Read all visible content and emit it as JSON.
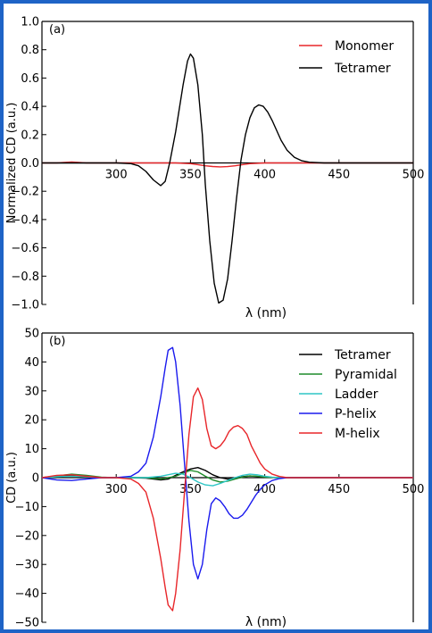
{
  "chart_data": [
    {
      "type": "line",
      "panel_label": "(a)",
      "ylabel": "Normalized CD (a.u.)",
      "xlabel": "λ (nm)",
      "xlim": [
        250,
        500
      ],
      "ylim": [
        -1.0,
        1.0
      ],
      "x_ticks": [
        300,
        350,
        400,
        450,
        500
      ],
      "y_ticks": [
        1.0,
        0.8,
        0.6,
        0.4,
        0.2,
        0.0,
        -0.2,
        -0.4,
        -0.6,
        -0.8,
        -1.0
      ],
      "x_tick_labels": [
        "300",
        "350",
        "400",
        "450",
        "500"
      ],
      "y_tick_labels": [
        "1.0",
        "0.8",
        "0.6",
        "0.4",
        "0.2",
        "0.0",
        "−0.2",
        "−0.4",
        "−0.6",
        "−0.8",
        "−1.0"
      ],
      "legend_position": "top-right",
      "grid": false,
      "series": [
        {
          "name": "Monomer",
          "color": "#e8262a",
          "x": [
            250,
            260,
            265,
            270,
            275,
            280,
            290,
            300,
            320,
            340,
            350,
            355,
            360,
            365,
            370,
            375,
            380,
            385,
            390,
            400,
            420,
            450,
            500
          ],
          "y": [
            0,
            0,
            0.004,
            0.006,
            0.004,
            0,
            0,
            0,
            0,
            0,
            -0.005,
            -0.012,
            -0.02,
            -0.025,
            -0.028,
            -0.026,
            -0.02,
            -0.012,
            -0.005,
            0,
            0,
            0,
            0
          ]
        },
        {
          "name": "Tetramer",
          "color": "#000000",
          "x": [
            250,
            300,
            310,
            315,
            320,
            325,
            330,
            333,
            336,
            340,
            345,
            348,
            350,
            352,
            355,
            358,
            360,
            363,
            366,
            369,
            372,
            375,
            378,
            381,
            384,
            387,
            390,
            393,
            396,
            399,
            402,
            405,
            408,
            411,
            415,
            420,
            425,
            430,
            440,
            450,
            500
          ],
          "y": [
            0,
            0,
            -0.005,
            -0.02,
            -0.06,
            -0.12,
            -0.16,
            -0.13,
            0.0,
            0.22,
            0.55,
            0.72,
            0.77,
            0.74,
            0.55,
            0.2,
            -0.15,
            -0.55,
            -0.85,
            -0.99,
            -0.97,
            -0.82,
            -0.55,
            -0.25,
            0.02,
            0.2,
            0.32,
            0.39,
            0.41,
            0.4,
            0.36,
            0.3,
            0.23,
            0.16,
            0.09,
            0.04,
            0.015,
            0.005,
            0,
            0,
            0
          ]
        }
      ]
    },
    {
      "type": "line",
      "panel_label": "(b)",
      "ylabel": "CD (a.u.)",
      "xlabel": "λ (nm)",
      "xlim": [
        250,
        500
      ],
      "ylim": [
        -50,
        50
      ],
      "x_ticks": [
        300,
        350,
        400,
        450,
        500
      ],
      "y_ticks": [
        50,
        40,
        30,
        20,
        10,
        0,
        -10,
        -20,
        -30,
        -40,
        -50
      ],
      "x_tick_labels": [
        "300",
        "350",
        "400",
        "450",
        "500"
      ],
      "y_tick_labels": [
        "50",
        "40",
        "30",
        "20",
        "10",
        "0",
        "−10",
        "−20",
        "−30",
        "−40",
        "−50"
      ],
      "legend_position": "top-right",
      "grid": false,
      "series": [
        {
          "name": "Tetramer",
          "color": "#000000",
          "x": [
            250,
            260,
            270,
            280,
            290,
            300,
            310,
            320,
            330,
            335,
            340,
            345,
            350,
            355,
            360,
            365,
            370,
            375,
            380,
            385,
            390,
            395,
            400,
            410,
            420,
            440,
            500
          ],
          "y": [
            0,
            0.5,
            0.8,
            0.4,
            0,
            0,
            0,
            -0.2,
            -0.8,
            -0.5,
            0.8,
            2.0,
            3.0,
            3.5,
            2.5,
            1.0,
            0,
            -0.5,
            -0.3,
            0.3,
            0.6,
            0.4,
            0.2,
            0,
            0,
            0,
            0
          ]
        },
        {
          "name": "Pyramidal",
          "color": "#1e8c2a",
          "x": [
            250,
            260,
            270,
            280,
            290,
            300,
            310,
            320,
            330,
            340,
            345,
            350,
            355,
            360,
            365,
            370,
            375,
            380,
            385,
            390,
            395,
            400,
            410,
            420,
            440,
            500
          ],
          "y": [
            0,
            0.6,
            1.2,
            0.8,
            0.2,
            0,
            0,
            0,
            -0.5,
            0.5,
            1.5,
            2.5,
            2.0,
            0.5,
            -0.8,
            -1.5,
            -1.2,
            -0.5,
            0.2,
            0.6,
            0.5,
            0.2,
            0,
            0,
            0,
            0
          ]
        },
        {
          "name": "Ladder",
          "color": "#2ec6c6",
          "x": [
            250,
            260,
            270,
            280,
            290,
            300,
            310,
            320,
            330,
            340,
            345,
            350,
            355,
            360,
            365,
            370,
            375,
            380,
            385,
            390,
            395,
            400,
            405,
            410,
            420,
            440,
            500
          ],
          "y": [
            0,
            0.3,
            0.5,
            0.3,
            0,
            0,
            0,
            0,
            0.5,
            1.5,
            1.2,
            0,
            -1.5,
            -2.5,
            -2.8,
            -2.0,
            -1.0,
            0,
            0.8,
            1.2,
            1.0,
            0.5,
            0.2,
            0,
            0,
            0,
            0
          ]
        },
        {
          "name": "P-helix",
          "color": "#1a1aee",
          "x": [
            250,
            260,
            270,
            280,
            290,
            300,
            310,
            315,
            320,
            325,
            330,
            333,
            335,
            338,
            340,
            343,
            346,
            349,
            352,
            355,
            358,
            361,
            364,
            367,
            370,
            373,
            376,
            379,
            382,
            385,
            388,
            391,
            394,
            397,
            400,
            405,
            410,
            415,
            420,
            430,
            440,
            500
          ],
          "y": [
            0,
            -0.8,
            -1.0,
            -0.5,
            0,
            0,
            0.5,
            2,
            5,
            14,
            28,
            38,
            44,
            45,
            40,
            25,
            5,
            -15,
            -30,
            -35,
            -30,
            -18,
            -9,
            -7,
            -8,
            -10,
            -12.5,
            -14,
            -14,
            -13,
            -11,
            -8.5,
            -6,
            -4,
            -2.5,
            -1,
            -0.3,
            0,
            0,
            0,
            0,
            0
          ]
        },
        {
          "name": "M-helix",
          "color": "#e8262a",
          "x": [
            250,
            260,
            270,
            280,
            290,
            300,
            310,
            315,
            320,
            325,
            330,
            333,
            335,
            338,
            340,
            343,
            346,
            349,
            352,
            355,
            358,
            361,
            364,
            367,
            370,
            373,
            376,
            379,
            382,
            385,
            388,
            391,
            394,
            397,
            400,
            405,
            410,
            415,
            420,
            430,
            440,
            500
          ],
          "y": [
            0,
            0.8,
            1.0,
            0.5,
            0,
            0,
            -0.5,
            -2,
            -5,
            -14,
            -28,
            -38,
            -44,
            -46,
            -40,
            -25,
            -5,
            15,
            28,
            31,
            27,
            17,
            11,
            10,
            11,
            13,
            16,
            17.5,
            18,
            17,
            15,
            11,
            8,
            5,
            3,
            1.2,
            0.4,
            0,
            0,
            0,
            0,
            0
          ]
        }
      ]
    }
  ]
}
